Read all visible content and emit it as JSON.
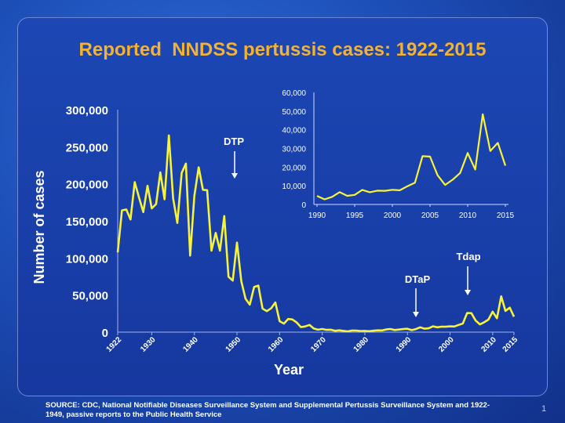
{
  "title": "Reported  NNDSS pertussis cases: 1922-2015",
  "footer": "SOURCE:  CDC, National Notifiable Diseases  Surveillance System and Supplemental Pertussis  Surveillance System and 1922-1949,  passive  reports to the Public Health Service",
  "page_number": "1",
  "colors": {
    "line": "#f7f23a",
    "title": "#f4b233",
    "text": "#ffffff"
  },
  "chart_data": [
    {
      "type": "line",
      "xlabel": "Year",
      "ylabel": "Number of cases",
      "xlim": [
        1922,
        2015
      ],
      "ylim": [
        0,
        300000
      ],
      "y_ticks": [
        "0",
        "50,000",
        "100,000",
        "150,000",
        "200,000",
        "250,000",
        "300,000"
      ],
      "x_ticks": [
        "1922",
        "1930",
        "1940",
        "1950",
        "1960",
        "1970",
        "1980",
        "1990",
        "2000",
        "2010",
        "2015"
      ],
      "annotations": [
        "DTP",
        "DTaP",
        "Tdap"
      ],
      "series": [
        {
          "x": [
            1922,
            1923,
            1924,
            1925,
            1926,
            1927,
            1928,
            1929,
            1930,
            1931,
            1932,
            1933,
            1934,
            1935,
            1936,
            1937,
            1938,
            1939,
            1940,
            1941,
            1942,
            1943,
            1944,
            1945,
            1946,
            1947,
            1948,
            1949,
            1950,
            1951,
            1952,
            1953,
            1954,
            1955,
            1956,
            1957,
            1958,
            1959,
            1960,
            1961,
            1962,
            1963,
            1964,
            1965,
            1966,
            1967,
            1968,
            1969,
            1970,
            1971,
            1972,
            1973,
            1974,
            1975,
            1976,
            1977,
            1978,
            1979,
            1980,
            1981,
            1982,
            1983,
            1984,
            1985,
            1986,
            1987,
            1988,
            1989,
            1990,
            1991,
            1992,
            1993,
            1994,
            1995,
            1996,
            1997,
            1998,
            1999,
            2000,
            2001,
            2002,
            2003,
            2004,
            2005,
            2006,
            2007,
            2008,
            2009,
            2010,
            2011,
            2012,
            2013,
            2014,
            2015
          ],
          "y": [
            107473,
            164191,
            165418,
            152003,
            202210,
            181411,
            161799,
            197371,
            166914,
            172559,
            215343,
            179135,
            265269,
            180518,
            147237,
            214652,
            227319,
            103188,
            183866,
            222202,
            191890,
            191383,
            109873,
            133792,
            109860,
            156517,
            74715,
            69479,
            120718,
            68687,
            45030,
            37129,
            60886,
            62786,
            31732,
            28295,
            32148,
            40005,
            14809,
            11468,
            17749,
            17135,
            13005,
            6799,
            7717,
            9718,
            4810,
            3285,
            4249,
            3036,
            3287,
            1759,
            2402,
            1738,
            1010,
            2177,
            2063,
            1623,
            1730,
            1248,
            1895,
            2463,
            2276,
            3589,
            4195,
            2823,
            3450,
            4157,
            4570,
            2719,
            4083,
            6586,
            4617,
            5137,
            7796,
            6564,
            7405,
            7288,
            7867,
            7580,
            9771,
            11647,
            25827,
            25616,
            15632,
            10454,
            13278,
            16858,
            27550,
            18719,
            48277,
            28639,
            32971,
            20762
          ]
        }
      ]
    },
    {
      "type": "line",
      "xlim": [
        1990,
        2015
      ],
      "ylim": [
        0,
        60000
      ],
      "y_ticks": [
        "0",
        "10,000",
        "20,000",
        "30,000",
        "40,000",
        "50,000",
        "60,000"
      ],
      "x_ticks": [
        "1990",
        "1995",
        "2000",
        "2005",
        "2010",
        "2015"
      ],
      "series": [
        {
          "x": [
            1990,
            1991,
            1992,
            1993,
            1994,
            1995,
            1996,
            1997,
            1998,
            1999,
            2000,
            2001,
            2002,
            2003,
            2004,
            2005,
            2006,
            2007,
            2008,
            2009,
            2010,
            2011,
            2012,
            2013,
            2014,
            2015
          ],
          "y": [
            4570,
            2719,
            4083,
            6586,
            4617,
            5137,
            7796,
            6564,
            7405,
            7288,
            7867,
            7580,
            9771,
            11647,
            25827,
            25616,
            15632,
            10454,
            13278,
            16858,
            27550,
            18719,
            48277,
            28639,
            32971,
            20762
          ]
        }
      ]
    }
  ]
}
